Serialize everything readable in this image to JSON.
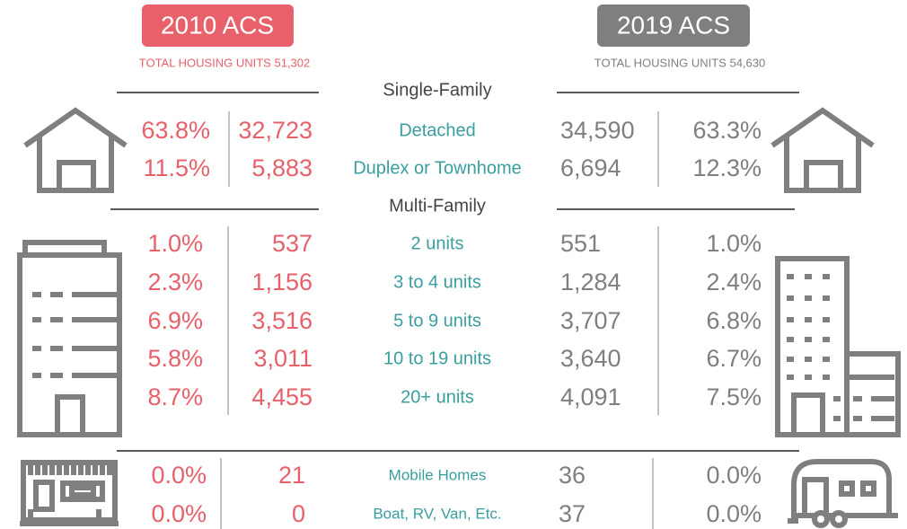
{
  "left": {
    "badge": "2010 ACS",
    "subtitle": "TOTAL HOUSING UNITS 51,302"
  },
  "right": {
    "badge": "2019 ACS",
    "subtitle": "TOTAL HOUSING UNITS 54,630"
  },
  "sections": [
    {
      "title": "Single-Family",
      "rows": [
        {
          "pct_2010": "63.8%",
          "units_2010": "32,723",
          "label": "Detached",
          "units_2019": "34,590",
          "pct_2019": "63.3%"
        },
        {
          "pct_2010": "11.5%",
          "units_2010": "5,883",
          "label": "Duplex or Townhome",
          "units_2019": "6,694",
          "pct_2019": "12.3%"
        }
      ]
    },
    {
      "title": "Multi-Family",
      "rows": [
        {
          "pct_2010": "1.0%",
          "units_2010": "537",
          "label": "2 units",
          "units_2019": "551",
          "pct_2019": "1.0%"
        },
        {
          "pct_2010": "2.3%",
          "units_2010": "1,156",
          "label": "3 to 4 units",
          "units_2019": "1,284",
          "pct_2019": "2.4%"
        },
        {
          "pct_2010": "6.9%",
          "units_2010": "3,516",
          "label": "5 to 9 units",
          "units_2019": "3,707",
          "pct_2019": "6.8%"
        },
        {
          "pct_2010": "5.8%",
          "units_2010": "3,011",
          "label": "10 to 19 units",
          "units_2019": "3,640",
          "pct_2019": "6.7%"
        },
        {
          "pct_2010": "8.7%",
          "units_2010": "4,455",
          "label": "20+ units",
          "units_2019": "4,091",
          "pct_2019": "7.5%"
        }
      ]
    },
    {
      "rows": [
        {
          "pct_2010": "0.0%",
          "units_2010": "21",
          "label": "Mobile Homes",
          "units_2019": "36",
          "pct_2019": "0.0%"
        },
        {
          "pct_2010": "0.0%",
          "units_2010": "0",
          "label": "Boat, RV, Van, Etc.",
          "units_2019": "37",
          "pct_2019": "0.0%"
        }
      ]
    }
  ]
}
